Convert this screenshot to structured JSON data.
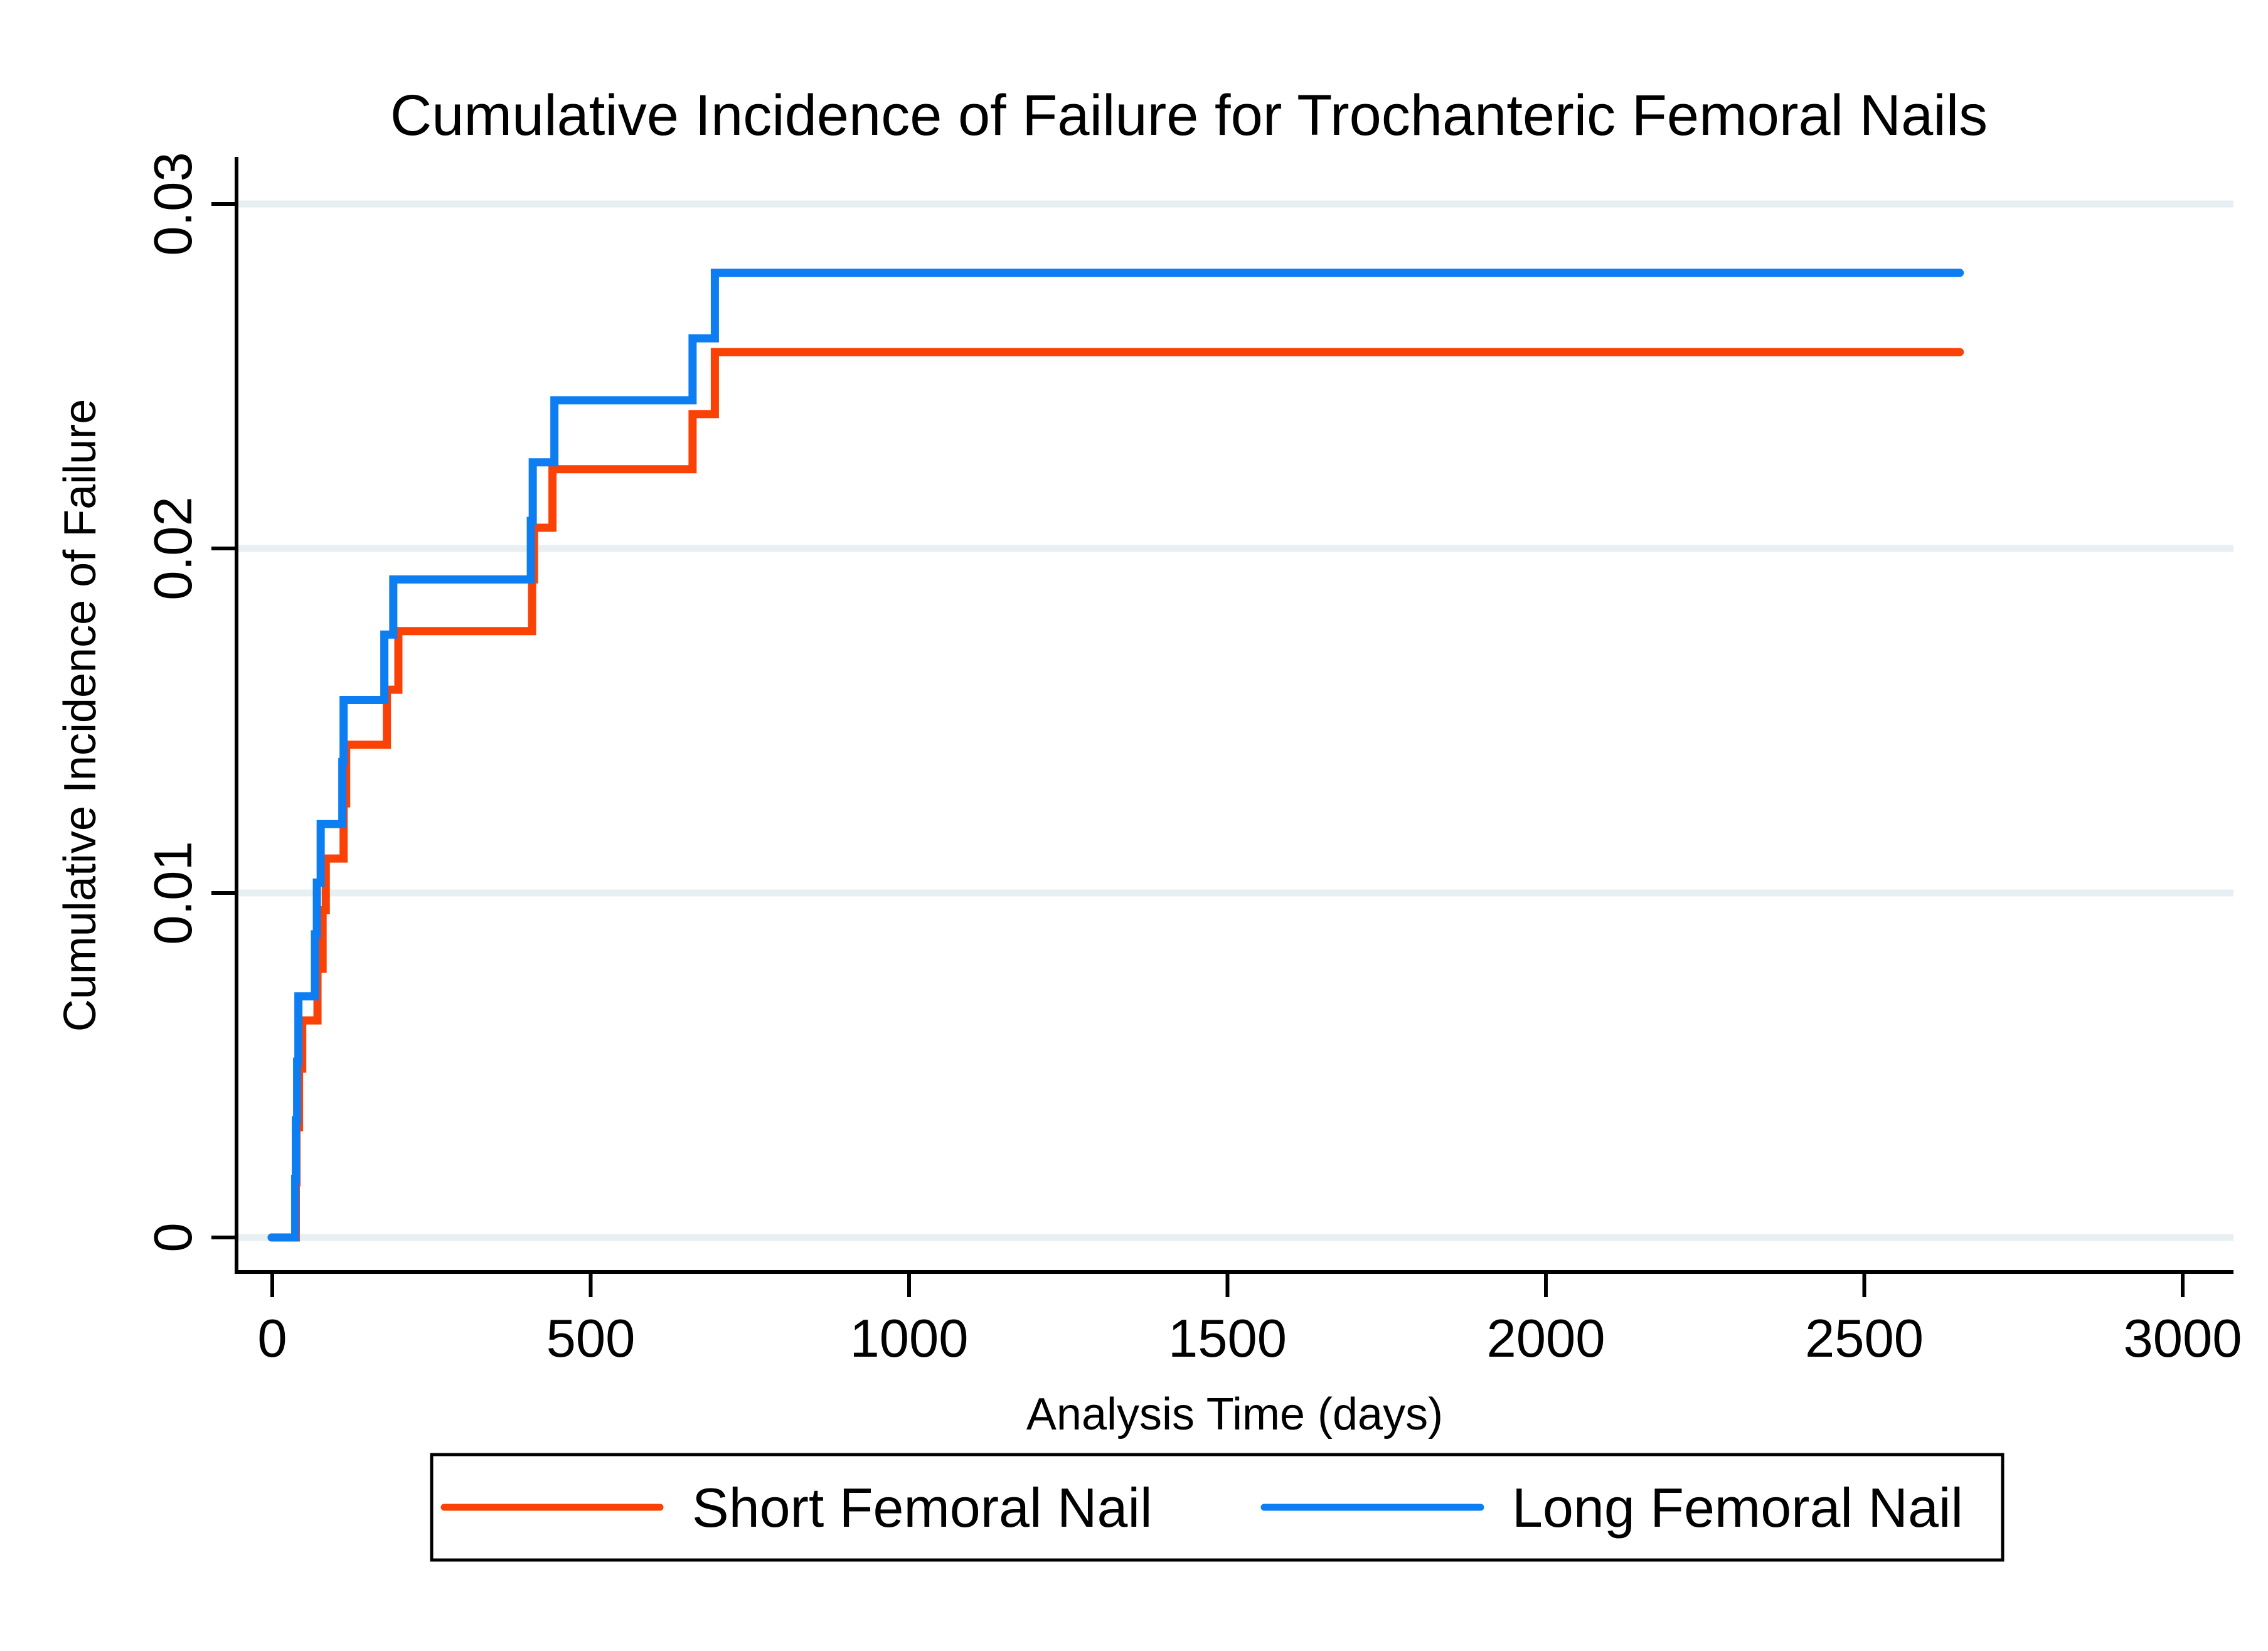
{
  "figure": {
    "background": "#FFFFFF"
  },
  "chart_data": {
    "type": "line",
    "subtype": "step-cumulative-incidence",
    "title": "Cumulative Incidence of Failure for Trochanteric Femoral Nails",
    "xlabel": "Analysis Time (days)",
    "ylabel": "Cumulative Incidence of Failure",
    "xlim": [
      0,
      3000
    ],
    "ylim": [
      0,
      0.03
    ],
    "xticks": [
      {
        "v": 0,
        "label": "0"
      },
      {
        "v": 500,
        "label": "500"
      },
      {
        "v": 1000,
        "label": "1000"
      },
      {
        "v": 1500,
        "label": "1500"
      },
      {
        "v": 2000,
        "label": "2000"
      },
      {
        "v": 2500,
        "label": "2500"
      },
      {
        "v": 3000,
        "label": "3000"
      }
    ],
    "yticks": [
      {
        "v": 0,
        "label": "0"
      },
      {
        "v": 0.01,
        "label": "0.01"
      },
      {
        "v": 0.02,
        "label": "0.02"
      },
      {
        "v": 0.03,
        "label": "0.03"
      }
    ],
    "grid": "horizontal",
    "grid_color": "#E8EFF2",
    "axis_color": "#000000",
    "legend_position": "bottom",
    "follow_up_end_days": 2650,
    "series": [
      {
        "name": "Short Femoral Nail",
        "color": "#FB4206",
        "final_value": 0.0257,
        "steps": [
          [
            37,
            0.0016
          ],
          [
            38,
            0.0032
          ],
          [
            42,
            0.0049
          ],
          [
            47,
            0.0063
          ],
          [
            71,
            0.0078
          ],
          [
            79,
            0.0095
          ],
          [
            84,
            0.011
          ],
          [
            112,
            0.0126
          ],
          [
            116,
            0.0143
          ],
          [
            180,
            0.0159
          ],
          [
            198,
            0.0176
          ],
          [
            408,
            0.0191
          ],
          [
            411,
            0.0206
          ],
          [
            440,
            0.0223
          ],
          [
            660,
            0.0239
          ],
          [
            695,
            0.0257
          ]
        ]
      },
      {
        "name": "Long Femoral Nail",
        "color": "#0D7DF2",
        "final_value": 0.028,
        "steps": [
          [
            36,
            0.0017
          ],
          [
            37,
            0.0034
          ],
          [
            39,
            0.0051
          ],
          [
            41,
            0.007
          ],
          [
            67,
            0.0088
          ],
          [
            70,
            0.0103
          ],
          [
            76,
            0.012
          ],
          [
            110,
            0.0138
          ],
          [
            112,
            0.0156
          ],
          [
            176,
            0.0175
          ],
          [
            190,
            0.0191
          ],
          [
            406,
            0.0208
          ],
          [
            409,
            0.0225
          ],
          [
            443,
            0.0243
          ],
          [
            660,
            0.0261
          ],
          [
            695,
            0.028
          ]
        ]
      }
    ]
  }
}
